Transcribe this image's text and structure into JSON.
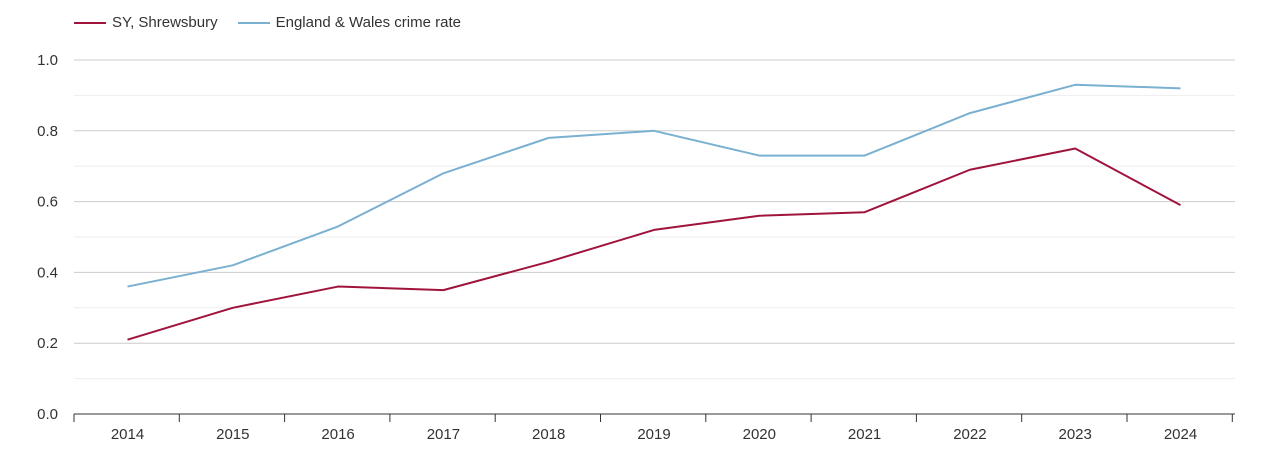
{
  "chart_data": {
    "type": "line",
    "title": "",
    "xlabel": "",
    "ylabel": "",
    "x": [
      "2014",
      "2015",
      "2016",
      "2017",
      "2018",
      "2019",
      "2020",
      "2021",
      "2022",
      "2023",
      "2024"
    ],
    "ylim": [
      0,
      1.0
    ],
    "yticks": [
      "0.0",
      "0.2",
      "0.4",
      "0.6",
      "0.8",
      "1.0"
    ],
    "grid": true,
    "legend_position": "top-left",
    "series": [
      {
        "name": "SY, Shrewsbury",
        "color": "#a0143c",
        "values": [
          0.21,
          0.3,
          0.36,
          0.35,
          0.43,
          0.52,
          0.56,
          0.57,
          0.69,
          0.75,
          0.59
        ]
      },
      {
        "name": "England & Wales crime rate",
        "color": "#7ab0d0",
        "values": [
          0.36,
          0.42,
          0.53,
          0.68,
          0.78,
          0.8,
          0.73,
          0.73,
          0.85,
          0.93,
          0.92
        ]
      }
    ]
  }
}
